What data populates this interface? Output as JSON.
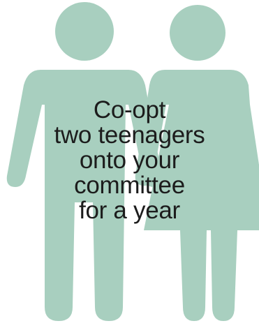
{
  "figure": {
    "fill_color": "#a8cfbf",
    "icons": [
      "male-figure-icon",
      "female-figure-icon"
    ]
  },
  "caption": {
    "lines": [
      "Co-opt",
      "two teenagers",
      "onto your",
      "committee",
      "for a year"
    ]
  }
}
